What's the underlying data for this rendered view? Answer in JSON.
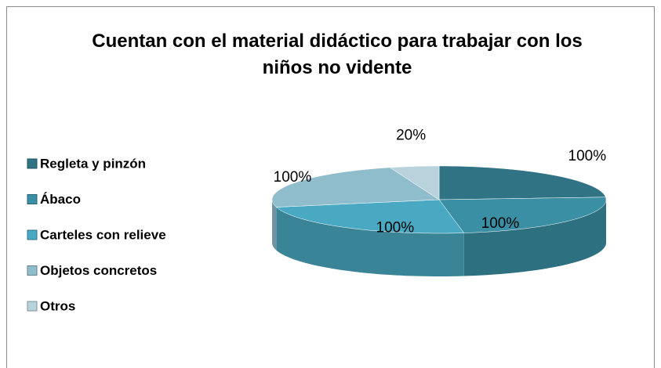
{
  "chart_data": {
    "type": "pie3d",
    "title": "Cuentan con el material didáctico para trabajar con los niños no vidente",
    "categories": [
      "Regleta y pinzón",
      "Ábaco",
      "Carteles con relieve",
      "Objetos concretos",
      "Otros"
    ],
    "values": [
      100,
      100,
      100,
      100,
      20
    ],
    "value_labels": [
      "100%",
      "100%",
      "100%",
      "100%",
      "20%"
    ],
    "colors": [
      "#2f7384",
      "#3a8fa4",
      "#4aa9c2",
      "#8fbdcc",
      "#b9d3dd"
    ],
    "legend": "left"
  }
}
